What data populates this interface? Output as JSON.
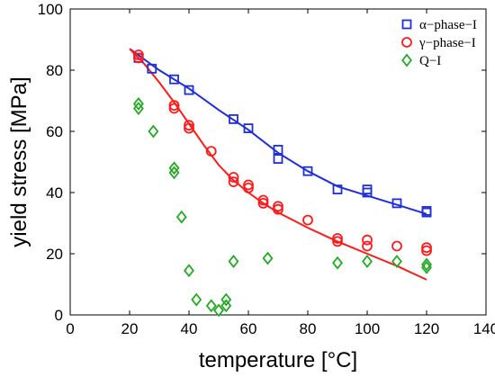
{
  "chart_data": {
    "type": "scatter",
    "xlabel": "temperature [°C]",
    "ylabel": "yield stress [MPa]",
    "xlim": [
      0,
      140
    ],
    "ylim": [
      0,
      100
    ],
    "xticks": [
      0,
      20,
      40,
      60,
      80,
      100,
      120,
      140
    ],
    "yticks": [
      0,
      20,
      40,
      60,
      80,
      100
    ],
    "grid": false,
    "legend_position": "top-right",
    "series": [
      {
        "name": "α−phase−I",
        "color": "#1f2fd8",
        "marker": "square",
        "points": [
          [
            23,
            84
          ],
          [
            27.5,
            80.5
          ],
          [
            35,
            77
          ],
          [
            40,
            73.5
          ],
          [
            55,
            64
          ],
          [
            60,
            61
          ],
          [
            70,
            54
          ],
          [
            70,
            51
          ],
          [
            80,
            47
          ],
          [
            90,
            41
          ],
          [
            100,
            41
          ],
          [
            100,
            40
          ],
          [
            110,
            36.5
          ],
          [
            120,
            34
          ],
          [
            120,
            33.5
          ]
        ],
        "fit": [
          [
            20,
            87
          ],
          [
            30,
            80
          ],
          [
            40,
            74
          ],
          [
            50,
            67
          ],
          [
            60,
            60.5
          ],
          [
            70,
            53
          ],
          [
            80,
            47
          ],
          [
            90,
            42
          ],
          [
            100,
            39
          ],
          [
            110,
            36
          ],
          [
            120,
            33
          ]
        ]
      },
      {
        "name": "γ−phase−I",
        "color": "#ff1a1a",
        "marker": "circle",
        "points": [
          [
            23,
            85
          ],
          [
            23,
            84
          ],
          [
            35,
            68.5
          ],
          [
            35,
            67.5
          ],
          [
            40,
            62
          ],
          [
            40,
            61
          ],
          [
            47.5,
            53.5
          ],
          [
            55,
            45
          ],
          [
            55,
            43.5
          ],
          [
            60,
            42.5
          ],
          [
            60,
            41.5
          ],
          [
            65,
            37.5
          ],
          [
            65,
            36.5
          ],
          [
            70,
            35.5
          ],
          [
            70,
            34.5
          ],
          [
            80,
            31
          ],
          [
            90,
            25
          ],
          [
            90,
            24
          ],
          [
            100,
            24.5
          ],
          [
            100,
            22.5
          ],
          [
            110,
            22.5
          ],
          [
            120,
            22
          ],
          [
            120,
            21
          ]
        ],
        "fit": [
          [
            20,
            87
          ],
          [
            25,
            82
          ],
          [
            30,
            76
          ],
          [
            35,
            69.5
          ],
          [
            40,
            62.5
          ],
          [
            45,
            55.5
          ],
          [
            50,
            49
          ],
          [
            55,
            44
          ],
          [
            60,
            40
          ],
          [
            65,
            36.5
          ],
          [
            70,
            33.5
          ],
          [
            80,
            28.5
          ],
          [
            90,
            24
          ],
          [
            100,
            20
          ],
          [
            110,
            16
          ],
          [
            120,
            11.5
          ]
        ]
      },
      {
        "name": "Q−I",
        "color": "#22aa22",
        "marker": "diamond",
        "points": [
          [
            23,
            69
          ],
          [
            23,
            67.5
          ],
          [
            28,
            60
          ],
          [
            35,
            48
          ],
          [
            35,
            46.5
          ],
          [
            37.5,
            32
          ],
          [
            40,
            14.5
          ],
          [
            42.5,
            5
          ],
          [
            47.5,
            3
          ],
          [
            50,
            1.5
          ],
          [
            52.5,
            3
          ],
          [
            52.5,
            5
          ],
          [
            55,
            17.5
          ],
          [
            66.5,
            18.5
          ],
          [
            90,
            17
          ],
          [
            100,
            17.5
          ],
          [
            110,
            17.5
          ],
          [
            120,
            16.5
          ],
          [
            120,
            15.5
          ]
        ]
      }
    ]
  }
}
